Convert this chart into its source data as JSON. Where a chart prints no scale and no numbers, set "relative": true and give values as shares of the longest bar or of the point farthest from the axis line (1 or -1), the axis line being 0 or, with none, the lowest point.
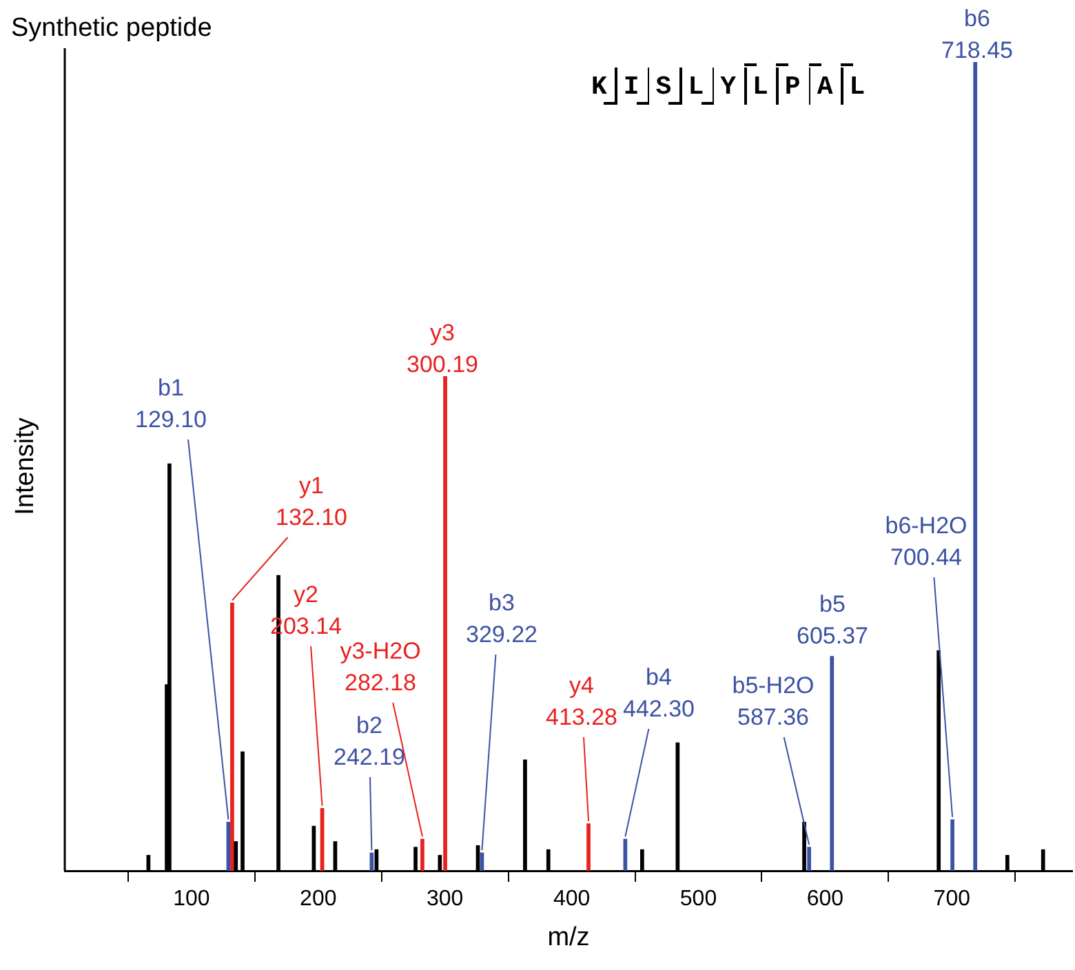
{
  "chart_data": {
    "type": "bar",
    "title": "Synthetic peptide",
    "xlabel": "m/z",
    "ylabel": "Intensity",
    "relative": true,
    "legend": false,
    "x": [
      66,
      80.5,
      82.6,
      129.1,
      132.1,
      135,
      140.3,
      168.6,
      196.5,
      203.14,
      213.4,
      242.19,
      246,
      276.8,
      282.18,
      296,
      300.19,
      326,
      329.22,
      363.2,
      381.6,
      413.28,
      442.3,
      455.6,
      483.6,
      583.5,
      587.36,
      605.37,
      689.6,
      700.44,
      718.45,
      743.8,
      772
    ],
    "values": [
      0.019,
      0.23,
      0.503,
      0.06,
      0.331,
      0.036,
      0.147,
      0.365,
      0.055,
      0.077,
      0.036,
      0.022,
      0.026,
      0.029,
      0.039,
      0.019,
      0.611,
      0.031,
      0.022,
      0.137,
      0.026,
      0.058,
      0.039,
      0.026,
      0.158,
      0.06,
      0.029,
      0.265,
      0.272,
      0.063,
      1,
      0.019,
      0.026
    ],
    "colors": [
      "#000000",
      "#000000",
      "#000000",
      "#3c52a4",
      "#e8211f",
      "#000000",
      "#000000",
      "#000000",
      "#000000",
      "#e8211f",
      "#000000",
      "#3c52a4",
      "#000000",
      "#000000",
      "#e8211f",
      "#000000",
      "#e8211f",
      "#000000",
      "#3c52a4",
      "#000000",
      "#000000",
      "#e8211f",
      "#3c52a4",
      "#000000",
      "#000000",
      "#000000",
      "#3c52a4",
      "#3c52a4",
      "#000000",
      "#3c52a4",
      "#3c52a4",
      "#000000",
      "#000000"
    ],
    "xlim": [
      0,
      795
    ],
    "xticks": [
      100,
      200,
      300,
      400,
      500,
      600,
      700
    ],
    "annotations": [
      {
        "text": "b1\n129.10",
        "x": 129.1,
        "y": 0.06
      },
      {
        "text": "y1\n132.10",
        "x": 132.1,
        "y": 0.331
      },
      {
        "text": "y2\n203.14",
        "x": 203.14,
        "y": 0.077
      },
      {
        "text": "b2\n242.19",
        "x": 242.19,
        "y": 0.022
      },
      {
        "text": "y3-H2O\n282.18",
        "x": 282.18,
        "y": 0.039
      },
      {
        "text": "y3\n300.19",
        "x": 300.19,
        "y": 0.611
      },
      {
        "text": "b3\n329.22",
        "x": 329.22,
        "y": 0.022
      },
      {
        "text": "y4\n413.28",
        "x": 413.28,
        "y": 0.058
      },
      {
        "text": "b4\n442.30",
        "x": 442.3,
        "y": 0.039
      },
      {
        "text": "b5-H2O\n587.36",
        "x": 587.36,
        "y": 0.029
      },
      {
        "text": "b5\n605.37",
        "x": 605.37,
        "y": 0.265
      },
      {
        "text": "b6-H2O\n700.44",
        "x": 700.44,
        "y": 0.063
      },
      {
        "text": "b6\n718.45",
        "x": 718.45,
        "y": 1
      },
      "KISLYLPAL"
    ]
  }
}
